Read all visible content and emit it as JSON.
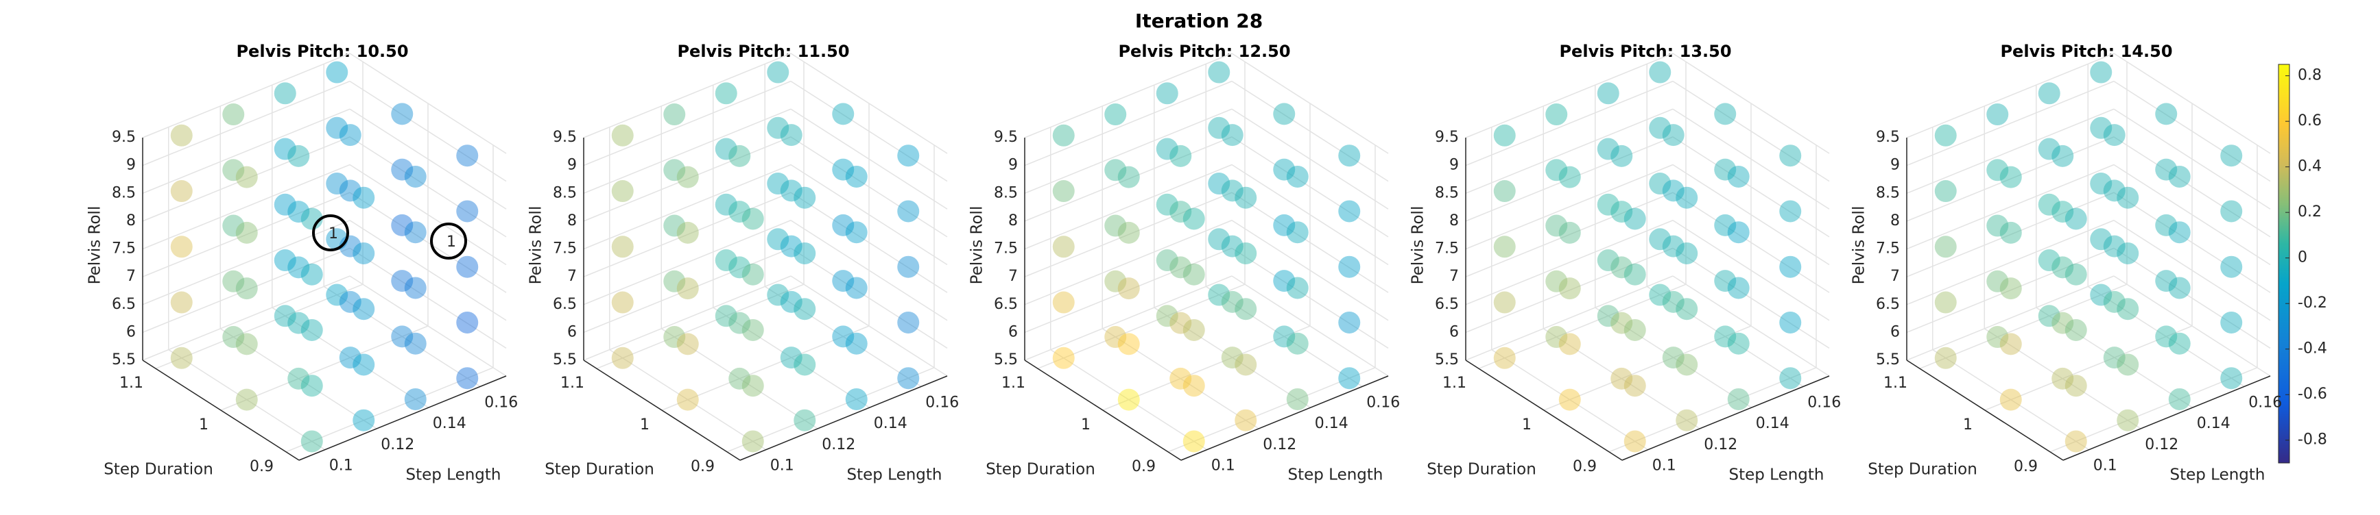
{
  "title": "Iteration 28",
  "colorbar": {
    "clim": [
      -0.9,
      0.85
    ],
    "ticks": [
      0.8,
      0.6,
      0.4,
      0.2,
      0,
      -0.2,
      -0.4,
      -0.6,
      -0.8
    ]
  },
  "chart_data": [
    {
      "type": "scatter3d",
      "title": "Pelvis Pitch: 10.50",
      "xlabel": "Step Length",
      "ylabel": "Step Duration",
      "zlabel": "Pelvis Roll",
      "x": [
        0.1,
        0.12,
        0.14,
        0.16
      ],
      "y": [
        0.9,
        1,
        1.1
      ],
      "z": [
        5.5,
        6.5,
        7.5,
        8.5,
        9.5
      ],
      "xlim": [
        0.09,
        0.17
      ],
      "ylim": [
        0.88,
        1.12
      ],
      "zlim": [
        5.5,
        9.5
      ],
      "xticks": [
        0.1,
        0.12,
        0.14,
        0.16
      ],
      "yticks": [
        0.9,
        1,
        1.1
      ],
      "zticks": [
        5.5,
        6,
        6.5,
        7,
        7.5,
        8,
        8.5,
        9,
        9.5
      ],
      "annotations": [
        "1",
        "1"
      ],
      "values": [
        [
          [
            0.1,
            0.05,
            0,
            -0.05,
            0
          ],
          [
            -0.1,
            -0.15,
            -0.2,
            -0.2,
            -0.15
          ],
          [
            -0.3,
            -0.35,
            -0.4,
            -0.35,
            -0.3
          ],
          [
            -0.5,
            -0.55,
            -0.5,
            -0.45,
            -0.4
          ]
        ],
        [
          [
            0.3,
            0.25,
            0.2,
            0.25,
            0.3
          ],
          [
            0.1,
            0,
            -0.1,
            -0.1,
            0
          ],
          [
            -0.2,
            -0.3,
            -0.35,
            -0.3,
            -0.2
          ],
          [
            -0.35,
            -0.45,
            -0.5,
            -0.4,
            -0.3
          ]
        ],
        [
          [
            0.35,
            0.4,
            0.45,
            0.4,
            0.35
          ],
          [
            0.2,
            0.2,
            0.15,
            0.2,
            0.2
          ],
          [
            0,
            -0.1,
            -0.15,
            -0.1,
            0
          ],
          [
            -0.1,
            -0.2,
            -0.25,
            -0.2,
            -0.1
          ]
        ]
      ]
    },
    {
      "type": "scatter3d",
      "title": "Pelvis Pitch: 11.50",
      "xlabel": "Step Length",
      "ylabel": "Step Duration",
      "zlabel": "Pelvis Roll",
      "x": [
        0.1,
        0.12,
        0.14,
        0.16
      ],
      "y": [
        0.9,
        1,
        1.1
      ],
      "z": [
        5.5,
        6.5,
        7.5,
        8.5,
        9.5
      ],
      "xlim": [
        0.09,
        0.17
      ],
      "ylim": [
        0.88,
        1.12
      ],
      "zlim": [
        5.5,
        9.5
      ],
      "xticks": [
        0.1,
        0.12,
        0.14,
        0.16
      ],
      "yticks": [
        0.9,
        1,
        1.1
      ],
      "zticks": [
        5.5,
        6,
        6.5,
        7,
        7.5,
        8,
        8.5,
        9,
        9.5
      ],
      "values": [
        [
          [
            0.3,
            0.25,
            0.2,
            0.15,
            0.1
          ],
          [
            0.1,
            0.05,
            0,
            -0.05,
            -0.05
          ],
          [
            -0.1,
            -0.15,
            -0.2,
            -0.15,
            -0.1
          ],
          [
            -0.3,
            -0.35,
            -0.3,
            -0.2,
            -0.15
          ]
        ],
        [
          [
            0.45,
            0.4,
            0.35,
            0.3,
            0.25
          ],
          [
            0.2,
            0.15,
            0.05,
            0.05,
            0.1
          ],
          [
            0,
            -0.05,
            -0.1,
            -0.05,
            0
          ],
          [
            -0.15,
            -0.2,
            -0.2,
            -0.1,
            -0.05
          ]
        ],
        [
          [
            0.4,
            0.4,
            0.35,
            0.3,
            0.3
          ],
          [
            0.25,
            0.2,
            0.15,
            0.15,
            0.15
          ],
          [
            0.1,
            0.05,
            0,
            0,
            0.05
          ],
          [
            0,
            -0.05,
            -0.05,
            0,
            0
          ]
        ]
      ]
    },
    {
      "type": "scatter3d",
      "title": "Pelvis Pitch: 12.50",
      "xlabel": "Step Length",
      "ylabel": "Step Duration",
      "zlabel": "Pelvis Roll",
      "x": [
        0.1,
        0.12,
        0.14,
        0.16
      ],
      "y": [
        0.9,
        1,
        1.1
      ],
      "z": [
        5.5,
        6.5,
        7.5,
        8.5,
        9.5
      ],
      "xlim": [
        0.09,
        0.17
      ],
      "ylim": [
        0.88,
        1.12
      ],
      "zlim": [
        5.5,
        9.5
      ],
      "xticks": [
        0.1,
        0.12,
        0.14,
        0.16
      ],
      "yticks": [
        0.9,
        1,
        1.1
      ],
      "zticks": [
        5.5,
        6,
        6.5,
        7,
        7.5,
        8,
        8.5,
        9,
        9.5
      ],
      "values": [
        [
          [
            0.7,
            0.55,
            0.35,
            0.2,
            0.05
          ],
          [
            0.5,
            0.35,
            0.15,
            0.05,
            0
          ],
          [
            0.2,
            0.1,
            0,
            -0.05,
            -0.05
          ],
          [
            -0.1,
            -0.2,
            -0.15,
            -0.1,
            -0.05
          ]
        ],
        [
          [
            0.75,
            0.6,
            0.4,
            0.25,
            0.1
          ],
          [
            0.55,
            0.4,
            0.2,
            0.1,
            0.05
          ],
          [
            0.3,
            0.15,
            0,
            0,
            0
          ],
          [
            0,
            -0.1,
            -0.1,
            -0.05,
            0
          ]
        ],
        [
          [
            0.6,
            0.5,
            0.35,
            0.2,
            0.1
          ],
          [
            0.45,
            0.3,
            0.2,
            0.1,
            0.05
          ],
          [
            0.25,
            0.15,
            0.05,
            0,
            0
          ],
          [
            0.05,
            0,
            -0.05,
            0,
            0
          ]
        ]
      ]
    },
    {
      "type": "scatter3d",
      "title": "Pelvis Pitch: 13.50",
      "xlabel": "Step Length",
      "ylabel": "Step Duration",
      "zlabel": "Pelvis Roll",
      "x": [
        0.1,
        0.12,
        0.14,
        0.16
      ],
      "y": [
        0.9,
        1,
        1.1
      ],
      "z": [
        5.5,
        6.5,
        7.5,
        8.5,
        9.5
      ],
      "xlim": [
        0.09,
        0.17
      ],
      "ylim": [
        0.88,
        1.12
      ],
      "zlim": [
        5.5,
        9.5
      ],
      "xticks": [
        0.1,
        0.12,
        0.14,
        0.16
      ],
      "yticks": [
        0.9,
        1,
        1.1
      ],
      "zticks": [
        5.5,
        6,
        6.5,
        7,
        7.5,
        8,
        8.5,
        9,
        9.5
      ],
      "values": [
        [
          [
            0.5,
            0.4,
            0.25,
            0.1,
            0
          ],
          [
            0.35,
            0.25,
            0.1,
            0,
            -0.05
          ],
          [
            0.15,
            0.05,
            -0.05,
            -0.1,
            -0.05
          ],
          [
            0,
            -0.1,
            -0.1,
            -0.05,
            0
          ]
        ],
        [
          [
            0.55,
            0.45,
            0.3,
            0.15,
            0.05
          ],
          [
            0.4,
            0.3,
            0.15,
            0.05,
            0
          ],
          [
            0.2,
            0.1,
            0,
            -0.05,
            0
          ],
          [
            0.05,
            0,
            -0.05,
            0,
            0
          ]
        ],
        [
          [
            0.45,
            0.35,
            0.25,
            0.15,
            0.05
          ],
          [
            0.3,
            0.25,
            0.15,
            0.05,
            0.05
          ],
          [
            0.15,
            0.1,
            0.05,
            0,
            0
          ],
          [
            0.05,
            0,
            0,
            0,
            0
          ]
        ]
      ]
    },
    {
      "type": "scatter3d",
      "title": "Pelvis Pitch: 14.50",
      "xlabel": "Step Length",
      "ylabel": "Step Duration",
      "zlabel": "Pelvis Roll",
      "x": [
        0.1,
        0.12,
        0.14,
        0.16
      ],
      "y": [
        0.9,
        1,
        1.1
      ],
      "z": [
        5.5,
        6.5,
        7.5,
        8.5,
        9.5
      ],
      "xlim": [
        0.09,
        0.17
      ],
      "ylim": [
        0.88,
        1.12
      ],
      "zlim": [
        5.5,
        9.5
      ],
      "xticks": [
        0.1,
        0.12,
        0.14,
        0.16
      ],
      "yticks": [
        0.9,
        1,
        1.1
      ],
      "zticks": [
        5.5,
        6,
        6.5,
        7,
        7.5,
        8,
        8.5,
        9,
        9.5
      ],
      "values": [
        [
          [
            0.45,
            0.35,
            0.2,
            0.1,
            0
          ],
          [
            0.3,
            0.2,
            0.1,
            0,
            0
          ],
          [
            0.1,
            0.05,
            0,
            -0.05,
            0
          ],
          [
            0,
            -0.05,
            -0.05,
            0,
            0
          ]
        ],
        [
          [
            0.5,
            0.4,
            0.25,
            0.1,
            0.05
          ],
          [
            0.35,
            0.25,
            0.1,
            0.05,
            0
          ],
          [
            0.15,
            0.1,
            0,
            0,
            0
          ],
          [
            0.05,
            0,
            0,
            0,
            0
          ]
        ],
        [
          [
            0.35,
            0.3,
            0.2,
            0.1,
            0.05
          ],
          [
            0.25,
            0.2,
            0.1,
            0.05,
            0
          ],
          [
            0.1,
            0.05,
            0.05,
            0,
            0
          ],
          [
            0,
            0,
            0,
            0,
            0
          ]
        ]
      ]
    }
  ]
}
